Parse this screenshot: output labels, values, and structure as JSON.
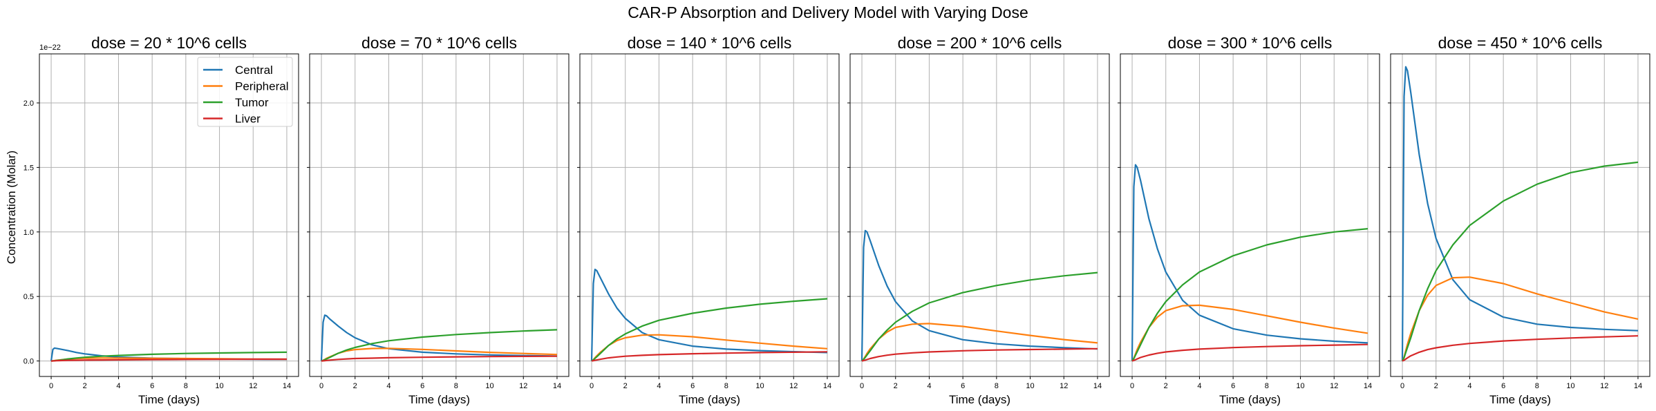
{
  "figure": {
    "suptitle": "CAR-P Absorption and Delivery Model with Varying Dose",
    "ylabel": "Concentration (Molar)",
    "y_offset_label": "1e−22"
  },
  "chart_data": {
    "type": "line",
    "shared_y": true,
    "ylim": [
      -0.12,
      2.38
    ],
    "y_ticks": [
      0.0,
      0.5,
      1.0,
      1.5,
      2.0
    ],
    "y_tick_labels": [
      "0.0",
      "0.5",
      "1.0",
      "1.5",
      "2.0"
    ],
    "y_scale_note": "1e−22",
    "xlim": [
      -0.7,
      14.7
    ],
    "x_ticks": [
      0,
      2,
      4,
      6,
      8,
      10,
      12,
      14
    ],
    "x_tick_labels": [
      "0",
      "2",
      "4",
      "6",
      "8",
      "10",
      "12",
      "14"
    ],
    "xlabel": "Time (days)",
    "grid": true,
    "legend": {
      "placement": "top-right",
      "panel": 0,
      "entries": [
        "Central",
        "Peripheral",
        "Tumor",
        "Liver"
      ]
    },
    "colors": {
      "Central": "#1f77b4",
      "Peripheral": "#ff7f0e",
      "Tumor": "#2ca02c",
      "Liver": "#d62728"
    },
    "panels": [
      {
        "title": "dose = 20 * 10^6 cells",
        "x": [
          0,
          0.1,
          0.2,
          0.3,
          0.5,
          1,
          1.5,
          2,
          3,
          4,
          6,
          8,
          10,
          12,
          14
        ],
        "series": [
          {
            "name": "Central",
            "values": [
              0,
              0.09,
              0.1,
              0.098,
              0.093,
              0.08,
              0.066,
              0.055,
              0.04,
              0.031,
              0.022,
              0.018,
              0.015,
              0.013,
              0.012
            ]
          },
          {
            "name": "Peripheral",
            "values": [
              0,
              0.001,
              0.003,
              0.005,
              0.008,
              0.015,
              0.019,
              0.021,
              0.023,
              0.023,
              0.021,
              0.019,
              0.017,
              0.015,
              0.014
            ]
          },
          {
            "name": "Tumor",
            "values": [
              0,
              0.001,
              0.002,
              0.004,
              0.007,
              0.016,
              0.023,
              0.029,
              0.037,
              0.043,
              0.052,
              0.058,
              0.062,
              0.065,
              0.068
            ]
          },
          {
            "name": "Liver",
            "values": [
              0,
              0.0005,
              0.001,
              0.002,
              0.003,
              0.005,
              0.006,
              0.007,
              0.008,
              0.009,
              0.011,
              0.012,
              0.013,
              0.014,
              0.014
            ]
          }
        ]
      },
      {
        "title": "dose = 70 * 10^6 cells",
        "x": [
          0,
          0.1,
          0.2,
          0.3,
          0.5,
          1,
          1.5,
          2,
          3,
          4,
          6,
          8,
          10,
          12,
          14
        ],
        "series": [
          {
            "name": "Central",
            "values": [
              0,
              0.3,
              0.355,
              0.35,
              0.325,
              0.27,
              0.22,
              0.18,
              0.125,
              0.095,
              0.068,
              0.055,
              0.047,
              0.042,
              0.038
            ]
          },
          {
            "name": "Peripheral",
            "values": [
              0,
              0.005,
              0.012,
              0.02,
              0.032,
              0.06,
              0.078,
              0.088,
              0.097,
              0.098,
              0.09,
              0.078,
              0.067,
              0.058,
              0.05
            ]
          },
          {
            "name": "Tumor",
            "values": [
              0,
              0.004,
              0.01,
              0.016,
              0.028,
              0.06,
              0.085,
              0.105,
              0.135,
              0.157,
              0.185,
              0.205,
              0.22,
              0.232,
              0.242
            ]
          },
          {
            "name": "Liver",
            "values": [
              0,
              0.001,
              0.002,
              0.004,
              0.007,
              0.012,
              0.016,
              0.019,
              0.022,
              0.025,
              0.029,
              0.032,
              0.034,
              0.036,
              0.037
            ]
          }
        ]
      },
      {
        "title": "dose = 140 * 10^6 cells",
        "x": [
          0,
          0.1,
          0.2,
          0.3,
          0.5,
          1,
          1.5,
          2,
          3,
          4,
          6,
          8,
          10,
          12,
          14
        ],
        "series": [
          {
            "name": "Central",
            "values": [
              0,
              0.6,
              0.71,
              0.7,
              0.65,
              0.52,
              0.41,
              0.33,
              0.22,
              0.165,
              0.115,
              0.092,
              0.08,
              0.072,
              0.065
            ]
          },
          {
            "name": "Peripheral",
            "values": [
              0,
              0.01,
              0.025,
              0.04,
              0.065,
              0.12,
              0.158,
              0.18,
              0.2,
              0.203,
              0.188,
              0.162,
              0.138,
              0.115,
              0.095
            ]
          },
          {
            "name": "Tumor",
            "values": [
              0,
              0.008,
              0.02,
              0.032,
              0.056,
              0.12,
              0.17,
              0.21,
              0.27,
              0.315,
              0.37,
              0.41,
              0.44,
              0.463,
              0.482
            ]
          },
          {
            "name": "Liver",
            "values": [
              0,
              0.002,
              0.005,
              0.008,
              0.013,
              0.024,
              0.031,
              0.037,
              0.044,
              0.049,
              0.056,
              0.061,
              0.065,
              0.068,
              0.071
            ]
          }
        ]
      },
      {
        "title": "dose = 200 * 10^6 cells",
        "x": [
          0,
          0.1,
          0.2,
          0.3,
          0.5,
          1,
          1.5,
          2,
          3,
          4,
          6,
          8,
          10,
          12,
          14
        ],
        "series": [
          {
            "name": "Central",
            "values": [
              0,
              0.88,
              1.01,
              1.0,
              0.93,
              0.74,
              0.58,
              0.46,
              0.31,
              0.235,
              0.165,
              0.133,
              0.115,
              0.103,
              0.093
            ]
          },
          {
            "name": "Peripheral",
            "values": [
              0,
              0.015,
              0.035,
              0.058,
              0.095,
              0.17,
              0.225,
              0.26,
              0.285,
              0.29,
              0.268,
              0.232,
              0.198,
              0.166,
              0.14
            ]
          },
          {
            "name": "Tumor",
            "values": [
              0,
              0.012,
              0.028,
              0.046,
              0.08,
              0.17,
              0.24,
              0.3,
              0.385,
              0.45,
              0.53,
              0.585,
              0.628,
              0.66,
              0.685
            ]
          },
          {
            "name": "Liver",
            "values": [
              0,
              0.003,
              0.007,
              0.011,
              0.019,
              0.034,
              0.045,
              0.053,
              0.063,
              0.07,
              0.079,
              0.085,
              0.089,
              0.092,
              0.095
            ]
          }
        ]
      },
      {
        "title": "dose = 300 * 10^6 cells",
        "x": [
          0,
          0.1,
          0.2,
          0.3,
          0.5,
          1,
          1.5,
          2,
          3,
          4,
          6,
          8,
          10,
          12,
          14
        ],
        "series": [
          {
            "name": "Central",
            "values": [
              0,
              1.35,
              1.52,
              1.5,
              1.4,
              1.1,
              0.87,
              0.69,
              0.47,
              0.355,
              0.25,
              0.2,
              0.172,
              0.153,
              0.14
            ]
          },
          {
            "name": "Peripheral",
            "values": [
              0,
              0.022,
              0.055,
              0.09,
              0.145,
              0.26,
              0.34,
              0.39,
              0.428,
              0.432,
              0.4,
              0.35,
              0.3,
              0.255,
              0.215
            ]
          },
          {
            "name": "Tumor",
            "values": [
              0,
              0.018,
              0.045,
              0.072,
              0.125,
              0.26,
              0.37,
              0.46,
              0.59,
              0.69,
              0.815,
              0.9,
              0.96,
              1.0,
              1.025
            ]
          },
          {
            "name": "Liver",
            "values": [
              0,
              0.004,
              0.01,
              0.016,
              0.027,
              0.046,
              0.06,
              0.07,
              0.083,
              0.092,
              0.104,
              0.112,
              0.118,
              0.123,
              0.128
            ]
          }
        ]
      },
      {
        "title": "dose = 450 * 10^6 cells",
        "x": [
          0,
          0.1,
          0.2,
          0.3,
          0.5,
          1,
          1.5,
          2,
          3,
          4,
          6,
          8,
          10,
          12,
          14
        ],
        "series": [
          {
            "name": "Central",
            "values": [
              0,
              2.05,
              2.28,
              2.25,
              2.08,
              1.6,
              1.22,
              0.95,
              0.63,
              0.475,
              0.34,
              0.285,
              0.26,
              0.245,
              0.235
            ]
          },
          {
            "name": "Peripheral",
            "values": [
              0,
              0.03,
              0.08,
              0.13,
              0.215,
              0.39,
              0.51,
              0.585,
              0.645,
              0.65,
              0.6,
              0.52,
              0.45,
              0.38,
              0.325
            ]
          },
          {
            "name": "Tumor",
            "values": [
              0,
              0.025,
              0.065,
              0.105,
              0.18,
              0.39,
              0.56,
              0.7,
              0.9,
              1.05,
              1.24,
              1.37,
              1.46,
              1.51,
              1.54
            ]
          },
          {
            "name": "Liver",
            "values": [
              0,
              0.006,
              0.015,
              0.024,
              0.04,
              0.068,
              0.088,
              0.102,
              0.122,
              0.136,
              0.155,
              0.168,
              0.178,
              0.187,
              0.195
            ]
          }
        ]
      }
    ]
  }
}
